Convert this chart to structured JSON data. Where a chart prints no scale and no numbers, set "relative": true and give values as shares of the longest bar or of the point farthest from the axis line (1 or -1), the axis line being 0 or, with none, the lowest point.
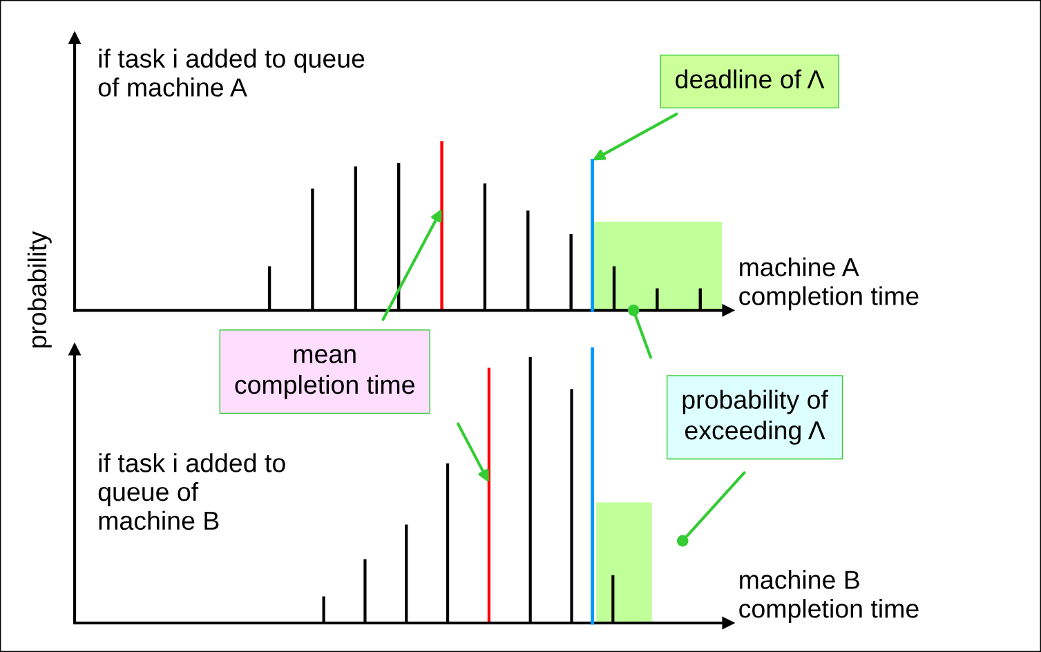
{
  "chart_data": [
    {
      "type": "bar",
      "relative": true,
      "title": "if task i added to queue\nof machine A",
      "xlabel": "machine A\ncompletion time",
      "ylabel": "probability",
      "categories": [
        null,
        null,
        null,
        null,
        null,
        null,
        null,
        null,
        null,
        null,
        null
      ],
      "values": [
        0.26,
        0.72,
        0.85,
        0.87,
        1.0,
        0.75,
        0.59,
        0.45,
        0.26,
        0.13,
        0.13
      ],
      "colors": [
        "#000000",
        "#000000",
        "#000000",
        "#000000",
        "#ff0000",
        "#000000",
        "#000000",
        "#000000",
        "#000000",
        "#000000",
        "#000000"
      ],
      "annotations": [
        "deadline of Λ",
        "mean\ncompletion time"
      ]
    },
    {
      "type": "bar",
      "relative": true,
      "title": "if task i added to\nqueue of\nmachine B",
      "xlabel": "machine B\ncompletion time",
      "categories": [
        null,
        null,
        null,
        null,
        null,
        null,
        null,
        null
      ],
      "values": [
        0.1,
        0.24,
        0.37,
        0.6,
        0.96,
        1.0,
        0.88,
        0.18
      ],
      "colors": [
        "#000000",
        "#000000",
        "#000000",
        "#000000",
        "#ff0000",
        "#000000",
        "#000000",
        "#000000"
      ],
      "annotations": [
        "probability of\nexceeding Λ"
      ]
    }
  ]
}
